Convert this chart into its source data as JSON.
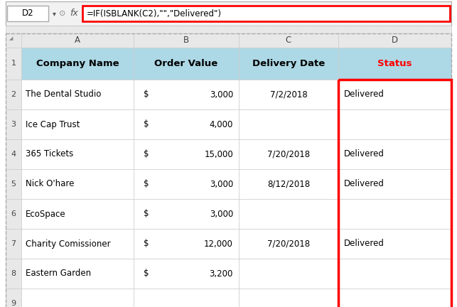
{
  "formula_bar_cell": "D2",
  "formula_bar_text": "=IF(ISBLANK(C2),\"\",\"Delivered\")",
  "col_headers": [
    "A",
    "B",
    "C",
    "D"
  ],
  "row_headers": [
    "1",
    "2",
    "3",
    "4",
    "5",
    "6",
    "7",
    "8",
    "9"
  ],
  "header_row": [
    "Company Name",
    "Order Value",
    "Delivery Date",
    "Status"
  ],
  "header_bg": "#add8e6",
  "header_color_status": "#ff0000",
  "col_A": [
    "The Dental Studio",
    "Ice Cap Trust",
    "365 Tickets",
    "Nick O'hare",
    "EcoSpace",
    "Charity Comissioner",
    "Eastern Garden",
    ""
  ],
  "col_B_dollar": [
    "$",
    "$",
    "$",
    "$",
    "$",
    "$",
    "$",
    ""
  ],
  "col_B_num": [
    "3,000",
    "4,000",
    "15,000",
    "3,000",
    "3,000",
    "12,000",
    "3,200",
    ""
  ],
  "col_C": [
    "7/2/2018",
    "",
    "7/20/2018",
    "8/12/2018",
    "",
    "7/20/2018",
    "",
    ""
  ],
  "col_D": [
    "Delivered",
    "",
    "Delivered",
    "Delivered",
    "",
    "Delivered",
    "",
    ""
  ],
  "bg_color": "#ffffff",
  "grid_color": "#cccccc",
  "header_row_bg": "#d9d9d9",
  "formula_box_border": "#ff0000",
  "formula_bar_bg": "#f2f2f2",
  "dashed_border_color": "#aaaaaa",
  "red_rect_color": "#ff0000"
}
